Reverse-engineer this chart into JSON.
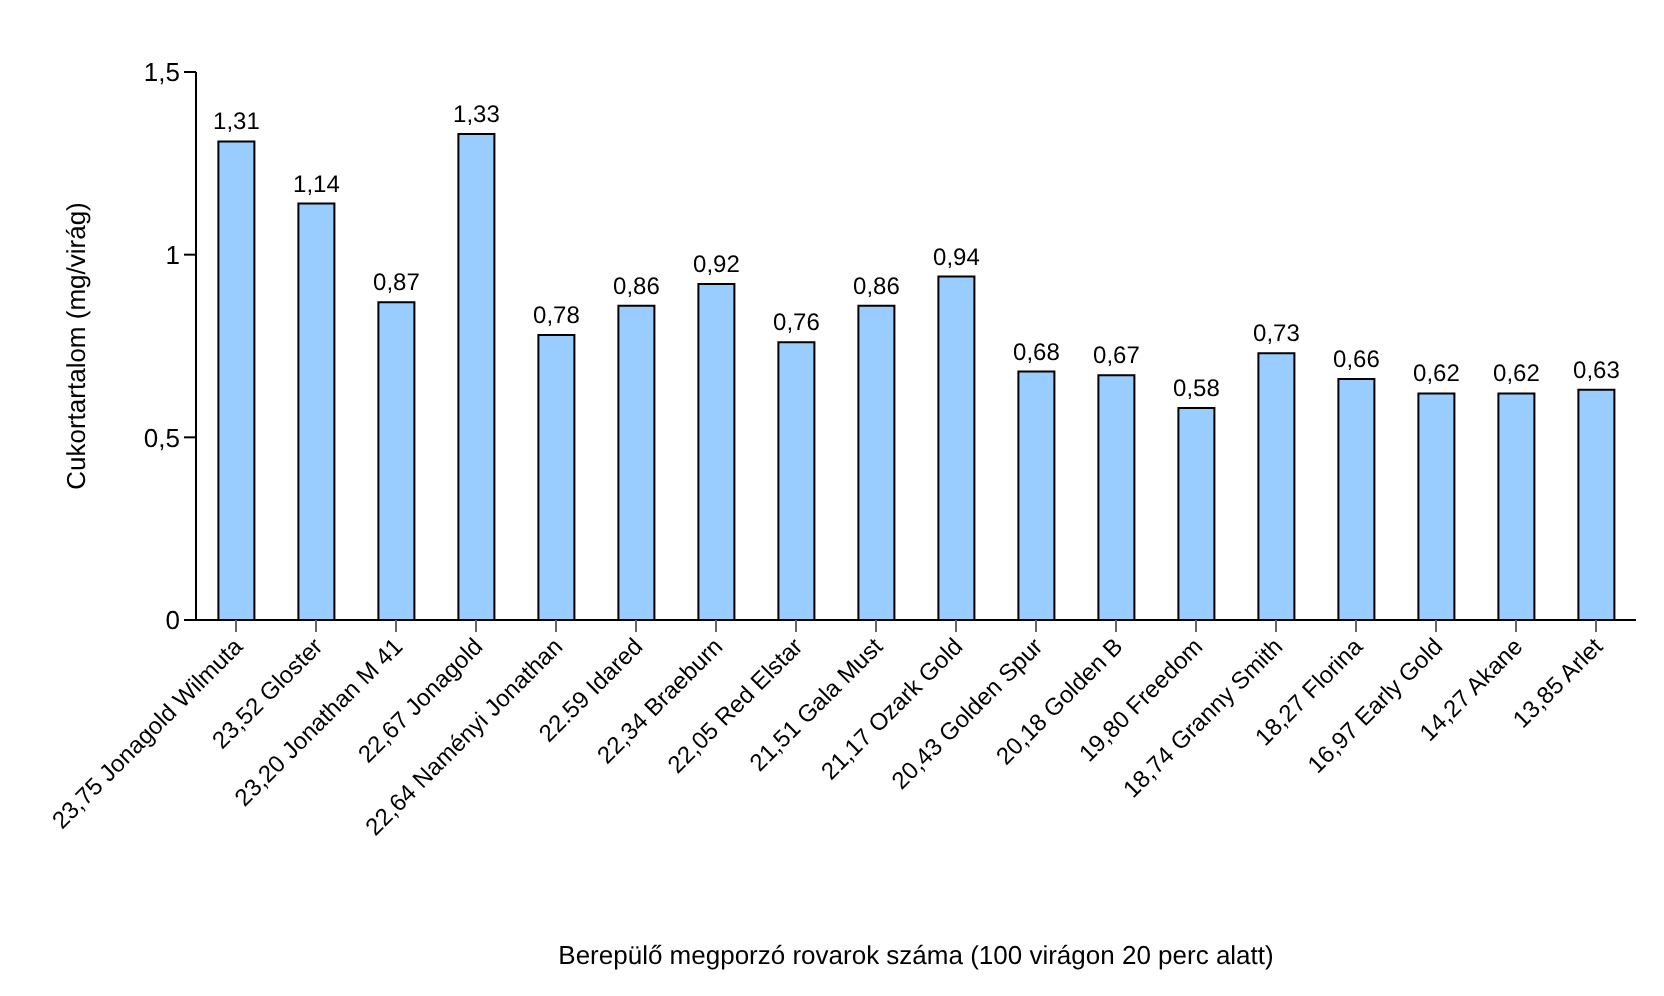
{
  "chart_data": {
    "type": "bar",
    "xlabel": "Berepülő megporzó rovarok száma (100 virágon 20 perc alatt)",
    "ylabel": "Cukortartalom (mg/virág)",
    "categories": [
      "23,75 Jonagold Wilmuta",
      "23,52 Gloster",
      "23,20 Jonathan M 41",
      "22,67 Jonagold",
      "22,64 Naményi Jonathan",
      "22.59 Idared",
      "22,34 Braeburn",
      "22,05 Red Elstar",
      "21,51 Gala Must",
      "21,17 Ozark Gold",
      "20,43 Golden Spur",
      "20,18 Golden B",
      "19,80 Freedom",
      "18,74 Granny Smith",
      "18,27 Florina",
      "16,97 Early Gold",
      "14,27 Akane",
      "13,85 Arlet"
    ],
    "values": [
      1.31,
      1.14,
      0.87,
      1.33,
      0.78,
      0.86,
      0.92,
      0.76,
      0.86,
      0.94,
      0.68,
      0.67,
      0.58,
      0.73,
      0.66,
      0.62,
      0.62,
      0.63
    ],
    "value_labels": [
      "1,31",
      "1,14",
      "0,87",
      "1,33",
      "0,78",
      "0,86",
      "0,92",
      "0,76",
      "0,86",
      "0,94",
      "0,68",
      "0,67",
      "0,58",
      "0,73",
      "0,66",
      "0,62",
      "0,62",
      "0,63"
    ],
    "color": "#99ccff",
    "ylim": [
      0,
      1.5
    ],
    "yticks": [
      0,
      {
        "value": 0.5,
        "label": "0,5"
      },
      1,
      {
        "value": 1.5,
        "label": "1,5"
      }
    ]
  }
}
